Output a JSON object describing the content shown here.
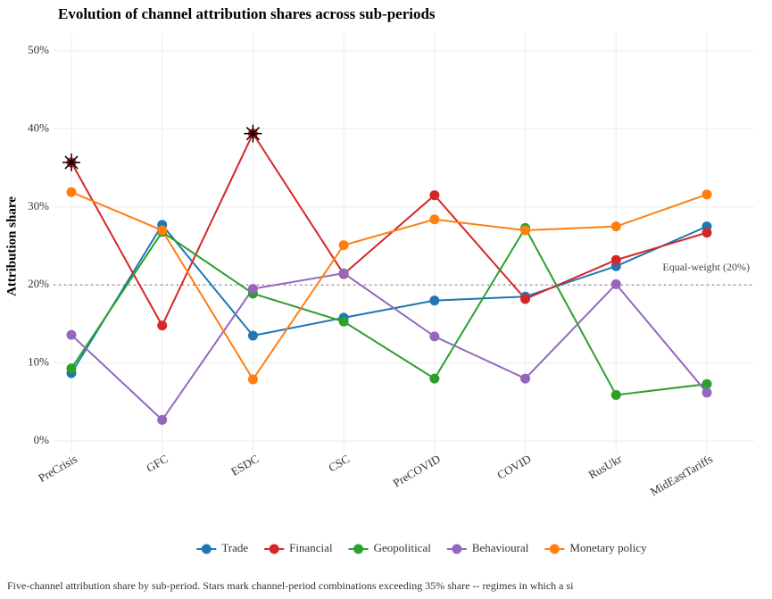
{
  "chart_data": {
    "type": "line",
    "title": "Evolution of channel attribution shares across sub-periods",
    "y_label": "Attribution share",
    "caption": "Five-channel attribution share by sub-period. Stars mark channel-period combinations exceeding 35% share -- regimes in which a si",
    "categories": [
      "PreCrisis",
      "GFC",
      "ESDC",
      "CSC",
      "PreCOVID",
      "COVID",
      "RusUkr",
      "MidEastTariffs"
    ],
    "series": [
      {
        "name": "Trade",
        "color": "#1f77b4",
        "values": [
          8.7,
          27.7,
          13.5,
          15.8,
          18.0,
          18.5,
          22.4,
          27.5
        ]
      },
      {
        "name": "Financial",
        "color": "#d62728",
        "values": [
          35.7,
          14.8,
          39.4,
          21.4,
          31.5,
          18.2,
          23.2,
          26.7
        ]
      },
      {
        "name": "Geopolitical",
        "color": "#2ca02c",
        "values": [
          9.3,
          26.8,
          18.9,
          15.3,
          8.0,
          27.3,
          5.9,
          7.3
        ]
      },
      {
        "name": "Behavioural",
        "color": "#9467bd",
        "values": [
          13.6,
          2.7,
          19.5,
          21.5,
          13.4,
          8.0,
          20.1,
          6.2
        ]
      },
      {
        "name": "Monetary policy",
        "color": "#ff7f0e",
        "values": [
          31.9,
          27.0,
          7.9,
          25.1,
          28.4,
          27.0,
          27.5,
          31.6
        ]
      }
    ],
    "star_threshold": 35,
    "reference_line": {
      "value": 20,
      "label": "Equal-weight (20%)"
    },
    "ylim": [
      0,
      50
    ],
    "yticks": [
      {
        "value": 0,
        "label": "0%"
      },
      {
        "value": 10,
        "label": "10%"
      },
      {
        "value": 20,
        "label": "20%"
      },
      {
        "value": 30,
        "label": "30%"
      },
      {
        "value": 40,
        "label": "40%"
      },
      {
        "value": 50,
        "label": "50%"
      }
    ],
    "grid": true,
    "legend": "bottom"
  }
}
